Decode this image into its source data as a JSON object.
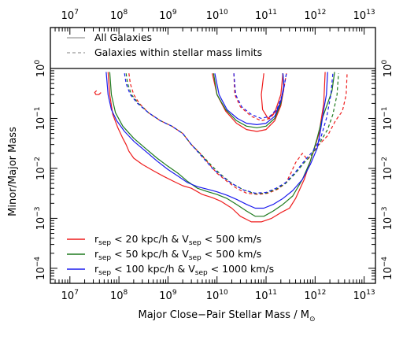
{
  "chart_data": {
    "type": "line",
    "xlabel": "Major Close−Pair Stellar Mass / M",
    "xlabel_sub": "⊙",
    "ylabel": "Minor/Major Mass",
    "x_scale": "log",
    "y_scale": "log",
    "xlim": [
      4000000.0,
      17000000000000.0
    ],
    "ylim": [
      5e-05,
      1.0
    ],
    "x_ticks": [
      {
        "value": 10000000.0,
        "base": "10",
        "exp": "7"
      },
      {
        "value": 100000000.0,
        "base": "10",
        "exp": "8"
      },
      {
        "value": 1000000000.0,
        "base": "10",
        "exp": "9"
      },
      {
        "value": 10000000000.0,
        "base": "10",
        "exp": "10"
      },
      {
        "value": 100000000000.0,
        "base": "10",
        "exp": "11"
      },
      {
        "value": 1000000000000.0,
        "base": "10",
        "exp": "12"
      },
      {
        "value": 10000000000000.0,
        "base": "10",
        "exp": "13"
      }
    ],
    "y_ticks": [
      {
        "value": 1.0,
        "base": "10",
        "exp": "0"
      },
      {
        "value": 0.1,
        "base": "10",
        "exp": "−1"
      },
      {
        "value": 0.01,
        "base": "10",
        "exp": "−2"
      },
      {
        "value": 0.001,
        "base": "10",
        "exp": "−3"
      },
      {
        "value": 0.0001,
        "base": "10",
        "exp": "−4"
      }
    ],
    "grid": false,
    "style_legend": {
      "placement": "top",
      "entries": [
        {
          "label": "All Galaxies",
          "line": "solid",
          "color": "#999999"
        },
        {
          "label": "Galaxies within stellar mass limits",
          "line": "dashed",
          "color": "#999999"
        }
      ]
    },
    "color_legend": {
      "placement": "bottom-left",
      "entries": [
        {
          "color": "#ee1c1c",
          "r": "r",
          "r_sub": "sep",
          "text1": " < 20 kpc/h & V",
          "v_sub": "sep",
          "text2": " < 500 km/s"
        },
        {
          "color": "#1e7a1e",
          "r": "r",
          "r_sub": "sep",
          "text1": " < 50 kpc/h & V",
          "v_sub": "sep",
          "text2": " < 500 km/s"
        },
        {
          "color": "#1a1aee",
          "r": "r",
          "r_sub": "sep",
          "text1": " < 100 kpc/h & V",
          "v_sub": "sep",
          "text2": " < 1000 km/s"
        }
      ]
    },
    "series": [
      {
        "color": "#ee1c1c",
        "line": "solid",
        "points": [
          [
            60000000.0,
            0.85
          ],
          [
            65000000.0,
            0.3
          ],
          [
            75000000.0,
            0.12
          ],
          [
            95000000.0,
            0.065
          ],
          [
            120000000.0,
            0.04
          ],
          [
            140000000.0,
            0.03
          ],
          [
            160000000.0,
            0.022
          ],
          [
            200000000.0,
            0.016
          ],
          [
            300000000.0,
            0.012
          ],
          [
            500000000.0,
            0.009
          ],
          [
            800000000.0,
            0.007
          ],
          [
            1300000000.0,
            0.0055
          ],
          [
            2000000000.0,
            0.0045
          ],
          [
            3000000000.0,
            0.004
          ],
          [
            5000000000.0,
            0.003
          ],
          [
            8000000000.0,
            0.0026
          ],
          [
            12000000000.0,
            0.0022
          ],
          [
            20000000000.0,
            0.0016
          ],
          [
            30000000000.0,
            0.0011
          ],
          [
            50000000000.0,
            0.00085
          ],
          [
            80000000000.0,
            0.00085
          ],
          [
            130000000000.0,
            0.001
          ],
          [
            200000000000.0,
            0.0013
          ],
          [
            300000000000.0,
            0.0016
          ],
          [
            400000000000.0,
            0.0025
          ],
          [
            600000000000.0,
            0.006
          ],
          [
            900000000000.0,
            0.02
          ],
          [
            1200000000000.0,
            0.05
          ],
          [
            1500000000000.0,
            0.2
          ],
          [
            1600000000000.0,
            0.85
          ]
        ]
      },
      {
        "color": "#ee1c1c",
        "line": "solid",
        "points": [
          [
            8000000000.0,
            0.8
          ],
          [
            10000000000.0,
            0.3
          ],
          [
            15000000000.0,
            0.14
          ],
          [
            25000000000.0,
            0.08
          ],
          [
            40000000000.0,
            0.06
          ],
          [
            65000000000.0,
            0.055
          ],
          [
            100000000000.0,
            0.06
          ],
          [
            150000000000.0,
            0.09
          ],
          [
            200000000000.0,
            0.18
          ],
          [
            230000000000.0,
            0.4
          ],
          [
            220000000000.0,
            0.8
          ]
        ]
      },
      {
        "color": "#ee1c1c",
        "line": "solid",
        "points": [
          [
            90000000000.0,
            0.8
          ],
          [
            80000000000.0,
            0.3
          ],
          [
            85000000000.0,
            0.15
          ],
          [
            110000000000.0,
            0.1
          ],
          [
            150000000000.0,
            0.13
          ],
          [
            200000000000.0,
            0.3
          ],
          [
            220000000000.0,
            0.8
          ]
        ]
      },
      {
        "color": "#ee1c1c",
        "line": "solid",
        "points": [
          [
            35000000.0,
            0.36
          ],
          [
            32000000.0,
            0.33
          ],
          [
            34000000.0,
            0.3
          ],
          [
            39000000.0,
            0.3
          ],
          [
            43000000.0,
            0.33
          ]
        ]
      },
      {
        "color": "#ee1c1c",
        "line": "dashed",
        "points": [
          [
            160000000.0,
            0.8
          ],
          [
            170000000.0,
            0.5
          ],
          [
            200000000.0,
            0.3
          ],
          [
            260000000.0,
            0.2
          ],
          [
            400000000.0,
            0.13
          ],
          [
            700000000.0,
            0.09
          ],
          [
            1200000000.0,
            0.07
          ],
          [
            2000000000.0,
            0.05
          ],
          [
            3000000000.0,
            0.03
          ],
          [
            4500000000.0,
            0.02
          ],
          [
            7000000000.0,
            0.012
          ],
          [
            10000000000.0,
            0.008
          ],
          [
            16000000000.0,
            0.0055
          ],
          [
            25000000000.0,
            0.004
          ],
          [
            40000000000.0,
            0.0032
          ],
          [
            70000000000.0,
            0.003
          ],
          [
            110000000000.0,
            0.0032
          ],
          [
            170000000000.0,
            0.0038
          ],
          [
            250000000000.0,
            0.005
          ],
          [
            320000000000.0,
            0.008
          ],
          [
            400000000000.0,
            0.013
          ],
          [
            550000000000.0,
            0.02
          ],
          [
            700000000000.0,
            0.015
          ],
          [
            900000000000.0,
            0.02
          ],
          [
            1200000000000.0,
            0.03
          ],
          [
            1800000000000.0,
            0.045
          ],
          [
            2600000000000.0,
            0.09
          ],
          [
            3600000000000.0,
            0.14
          ],
          [
            4300000000000.0,
            0.3
          ],
          [
            4500000000000.0,
            0.8
          ]
        ]
      },
      {
        "color": "#ee1c1c",
        "line": "dashed",
        "points": [
          [
            22000000000.0,
            0.8
          ],
          [
            23000000000.0,
            0.3
          ],
          [
            30000000000.0,
            0.17
          ],
          [
            50000000000.0,
            0.11
          ],
          [
            80000000000.0,
            0.09
          ],
          [
            120000000000.0,
            0.1
          ],
          [
            170000000000.0,
            0.15
          ],
          [
            220000000000.0,
            0.3
          ],
          [
            260000000000.0,
            0.8
          ]
        ]
      },
      {
        "color": "#1e7a1e",
        "line": "solid",
        "points": [
          [
            65000000.0,
            0.85
          ],
          [
            70000000.0,
            0.3
          ],
          [
            85000000.0,
            0.13
          ],
          [
            120000000.0,
            0.07
          ],
          [
            200000000.0,
            0.04
          ],
          [
            350000000.0,
            0.025
          ],
          [
            600000000.0,
            0.016
          ],
          [
            1000000000.0,
            0.011
          ],
          [
            1600000000.0,
            0.008
          ],
          [
            2500000000.0,
            0.0055
          ],
          [
            4000000000.0,
            0.004
          ],
          [
            6000000000.0,
            0.0035
          ],
          [
            10000000000.0,
            0.003
          ],
          [
            16000000000.0,
            0.0025
          ],
          [
            25000000000.0,
            0.0019
          ],
          [
            40000000000.0,
            0.0014
          ],
          [
            60000000000.0,
            0.0011
          ],
          [
            90000000000.0,
            0.0011
          ],
          [
            140000000000.0,
            0.0014
          ],
          [
            220000000000.0,
            0.0019
          ],
          [
            350000000000.0,
            0.0028
          ],
          [
            550000000000.0,
            0.006
          ],
          [
            800000000000.0,
            0.014
          ],
          [
            1100000000000.0,
            0.04
          ],
          [
            1400000000000.0,
            0.1
          ],
          [
            1800000000000.0,
            0.2
          ],
          [
            2200000000000.0,
            0.35
          ],
          [
            2500000000000.0,
            0.85
          ]
        ]
      },
      {
        "color": "#1e7a1e",
        "line": "solid",
        "points": [
          [
            8500000000.0,
            0.8
          ],
          [
            10000000000.0,
            0.3
          ],
          [
            15000000000.0,
            0.15
          ],
          [
            25000000000.0,
            0.09
          ],
          [
            40000000000.0,
            0.07
          ],
          [
            65000000000.0,
            0.065
          ],
          [
            100000000000.0,
            0.07
          ],
          [
            150000000000.0,
            0.1
          ],
          [
            200000000000.0,
            0.2
          ],
          [
            230000000000.0,
            0.45
          ],
          [
            220000000000.0,
            0.8
          ]
        ]
      },
      {
        "color": "#1e7a1e",
        "line": "dashed",
        "points": [
          [
            140000000.0,
            0.8
          ],
          [
            150000000.0,
            0.5
          ],
          [
            180000000.0,
            0.3
          ],
          [
            250000000.0,
            0.2
          ],
          [
            400000000.0,
            0.13
          ],
          [
            700000000.0,
            0.09
          ],
          [
            1200000000.0,
            0.07
          ],
          [
            2000000000.0,
            0.05
          ],
          [
            3000000000.0,
            0.03
          ],
          [
            5000000000.0,
            0.018
          ],
          [
            8000000000.0,
            0.011
          ],
          [
            12000000000.0,
            0.0075
          ],
          [
            20000000000.0,
            0.005
          ],
          [
            35000000000.0,
            0.0037
          ],
          [
            60000000000.0,
            0.0031
          ],
          [
            100000000000.0,
            0.0032
          ],
          [
            160000000000.0,
            0.0038
          ],
          [
            250000000000.0,
            0.005
          ],
          [
            400000000000.0,
            0.008
          ],
          [
            600000000000.0,
            0.013
          ],
          [
            900000000000.0,
            0.02
          ],
          [
            1300000000000.0,
            0.035
          ],
          [
            1800000000000.0,
            0.06
          ],
          [
            2300000000000.0,
            0.12
          ],
          [
            2800000000000.0,
            0.3
          ],
          [
            3000000000000.0,
            0.8
          ]
        ]
      },
      {
        "color": "#1a1aee",
        "line": "solid",
        "points": [
          [
            55000000.0,
            0.85
          ],
          [
            60000000.0,
            0.3
          ],
          [
            70000000.0,
            0.15
          ],
          [
            90000000.0,
            0.09
          ],
          [
            130000000.0,
            0.055
          ],
          [
            200000000.0,
            0.035
          ],
          [
            350000000.0,
            0.022
          ],
          [
            600000000.0,
            0.014
          ],
          [
            1000000000.0,
            0.0095
          ],
          [
            1600000000.0,
            0.007
          ],
          [
            2500000000.0,
            0.0052
          ],
          [
            4000000000.0,
            0.0043
          ],
          [
            6500000000.0,
            0.0038
          ],
          [
            10000000000.0,
            0.0034
          ],
          [
            16000000000.0,
            0.0029
          ],
          [
            25000000000.0,
            0.0024
          ],
          [
            40000000000.0,
            0.0019
          ],
          [
            60000000000.0,
            0.0016
          ],
          [
            90000000000.0,
            0.0016
          ],
          [
            140000000000.0,
            0.0019
          ],
          [
            220000000000.0,
            0.0025
          ],
          [
            350000000000.0,
            0.0036
          ],
          [
            550000000000.0,
            0.006
          ],
          [
            800000000000.0,
            0.012
          ],
          [
            1100000000000.0,
            0.025
          ],
          [
            1300000000000.0,
            0.06
          ],
          [
            1500000000000.0,
            0.15
          ],
          [
            1700000000000.0,
            0.3
          ],
          [
            1800000000000.0,
            0.85
          ]
        ]
      },
      {
        "color": "#1a1aee",
        "line": "solid",
        "points": [
          [
            9000000000.0,
            0.8
          ],
          [
            11000000000.0,
            0.3
          ],
          [
            16000000000.0,
            0.15
          ],
          [
            26000000000.0,
            0.1
          ],
          [
            40000000000.0,
            0.08
          ],
          [
            65000000000.0,
            0.075
          ],
          [
            100000000000.0,
            0.08
          ],
          [
            150000000000.0,
            0.11
          ],
          [
            200000000000.0,
            0.22
          ],
          [
            230000000000.0,
            0.45
          ],
          [
            220000000000.0,
            0.8
          ]
        ]
      },
      {
        "color": "#1a1aee",
        "line": "dashed",
        "points": [
          [
            130000000.0,
            0.8
          ],
          [
            140000000.0,
            0.5
          ],
          [
            170000000.0,
            0.3
          ],
          [
            240000000.0,
            0.2
          ],
          [
            400000000.0,
            0.13
          ],
          [
            700000000.0,
            0.09
          ],
          [
            1200000000.0,
            0.07
          ],
          [
            2000000000.0,
            0.05
          ],
          [
            3000000000.0,
            0.03
          ],
          [
            5000000000.0,
            0.017
          ],
          [
            8000000000.0,
            0.01
          ],
          [
            13000000000.0,
            0.0068
          ],
          [
            20000000000.0,
            0.005
          ],
          [
            35000000000.0,
            0.0037
          ],
          [
            60000000000.0,
            0.0032
          ],
          [
            100000000000.0,
            0.0033
          ],
          [
            160000000000.0,
            0.004
          ],
          [
            250000000000.0,
            0.0052
          ],
          [
            400000000000.0,
            0.0085
          ],
          [
            600000000000.0,
            0.014
          ],
          [
            900000000000.0,
            0.022
          ],
          [
            1300000000000.0,
            0.04
          ],
          [
            1700000000000.0,
            0.1
          ],
          [
            2100000000000.0,
            0.3
          ],
          [
            2300000000000.0,
            0.8
          ]
        ]
      },
      {
        "color": "#1a1aee",
        "line": "dashed",
        "points": [
          [
            22000000000.0,
            0.8
          ],
          [
            24000000000.0,
            0.3
          ],
          [
            32000000000.0,
            0.17
          ],
          [
            50000000000.0,
            0.12
          ],
          [
            80000000000.0,
            0.1
          ],
          [
            120000000000.0,
            0.11
          ],
          [
            170000000000.0,
            0.16
          ],
          [
            220000000000.0,
            0.32
          ],
          [
            260000000000.0,
            0.8
          ]
        ]
      }
    ]
  }
}
